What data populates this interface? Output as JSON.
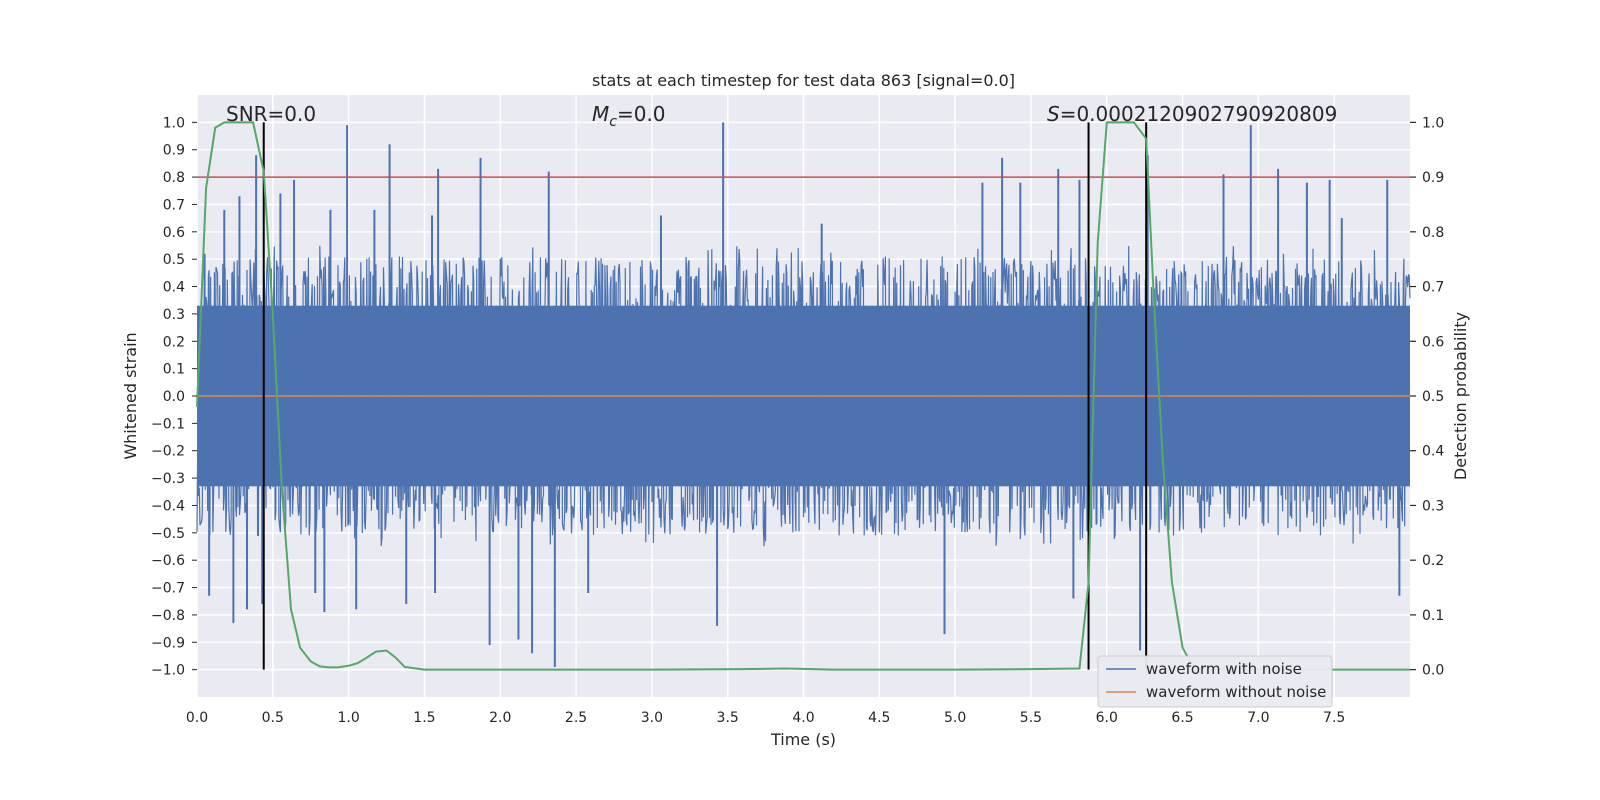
{
  "chart_data": {
    "type": "line",
    "title": "stats at each timestep for test data 863 [signal=0.0]",
    "xlabel": "Time (s)",
    "ylabel": "Whitened strain",
    "y2label": "Detection probability",
    "xlim": [
      0.0,
      8.0
    ],
    "ylim": [
      -1.1,
      1.1
    ],
    "y2lim": [
      -0.05,
      1.05
    ],
    "x_ticks": [
      0.0,
      0.5,
      1.0,
      1.5,
      2.0,
      2.5,
      3.0,
      3.5,
      4.0,
      4.5,
      5.0,
      5.5,
      6.0,
      6.5,
      7.0,
      7.5
    ],
    "x_tick_labels": [
      "0.0",
      "0.5",
      "1.0",
      "1.5",
      "2.0",
      "2.5",
      "3.0",
      "3.5",
      "4.0",
      "4.5",
      "5.0",
      "5.5",
      "6.0",
      "6.5",
      "7.0",
      "7.5"
    ],
    "y_ticks": [
      1.0,
      0.9,
      0.8,
      0.7,
      0.6,
      0.5,
      0.4,
      0.3,
      0.2,
      0.1,
      0.0,
      -0.1,
      -0.2,
      -0.3,
      -0.4,
      -0.5,
      -0.6,
      -0.7,
      -0.8,
      -0.9,
      -1.0
    ],
    "y_tick_labels": [
      "1.0",
      "0.9",
      "0.8",
      "0.7",
      "0.6",
      "0.5",
      "0.4",
      "0.3",
      "0.2",
      "0.1",
      "0.0",
      "−0.1",
      "−0.2",
      "−0.3",
      "−0.4",
      "−0.5",
      "−0.6",
      "−0.7",
      "−0.8",
      "−0.9",
      "−1.0"
    ],
    "y2_ticks": [
      1.0,
      0.9,
      0.8,
      0.7,
      0.6,
      0.5,
      0.4,
      0.3,
      0.2,
      0.1,
      0.0
    ],
    "y2_tick_labels": [
      "1.0",
      "0.9",
      "0.8",
      "0.7",
      "0.6",
      "0.5",
      "0.4",
      "0.3",
      "0.2",
      "0.1",
      "0.0"
    ],
    "annotations": {
      "snr": "SNR=0.0",
      "mc_symbol": "M",
      "mc_sub": "c",
      "mc_value": "=0.0",
      "s_symbol": "S",
      "s_value": "=0.0002120902790920809"
    },
    "threshold_line": {
      "y": 0.8,
      "color": "#c44e52"
    },
    "vertical_markers": [
      0.44,
      5.88,
      6.26
    ],
    "series": [
      {
        "name": "waveform with noise",
        "color": "#4c72b0",
        "description": "dense noisy strain, mostly within -0.5..0.5 with spikes",
        "spikes": [
          [
            0.05,
            0.52
          ],
          [
            0.08,
            -0.73
          ],
          [
            0.18,
            0.68
          ],
          [
            0.24,
            -0.83
          ],
          [
            0.28,
            0.73
          ],
          [
            0.33,
            -0.78
          ],
          [
            0.39,
            0.88
          ],
          [
            0.43,
            -0.76
          ],
          [
            0.55,
            0.74
          ],
          [
            0.64,
            0.79
          ],
          [
            0.78,
            -0.72
          ],
          [
            0.84,
            -0.79
          ],
          [
            0.88,
            0.68
          ],
          [
            0.99,
            0.99
          ],
          [
            1.05,
            -0.78
          ],
          [
            1.17,
            0.68
          ],
          [
            1.27,
            0.92
          ],
          [
            1.38,
            -0.76
          ],
          [
            1.55,
            0.66
          ],
          [
            1.57,
            -0.72
          ],
          [
            1.59,
            0.83
          ],
          [
            1.87,
            0.87
          ],
          [
            1.93,
            -0.91
          ],
          [
            2.12,
            -0.89
          ],
          [
            2.21,
            -0.94
          ],
          [
            2.32,
            0.82
          ],
          [
            2.36,
            -0.99
          ],
          [
            2.58,
            -0.72
          ],
          [
            3.06,
            0.66
          ],
          [
            3.43,
            -0.84
          ],
          [
            3.47,
            1.0
          ],
          [
            4.12,
            0.63
          ],
          [
            4.93,
            -0.87
          ],
          [
            5.18,
            0.78
          ],
          [
            5.31,
            0.87
          ],
          [
            5.43,
            0.78
          ],
          [
            5.68,
            0.83
          ],
          [
            5.78,
            -0.74
          ],
          [
            5.82,
            0.79
          ],
          [
            6.22,
            -0.93
          ],
          [
            6.27,
            0.88
          ],
          [
            6.77,
            0.81
          ],
          [
            6.95,
            0.99
          ],
          [
            7.13,
            0.83
          ],
          [
            7.32,
            0.78
          ],
          [
            7.47,
            0.79
          ],
          [
            7.55,
            0.65
          ],
          [
            7.85,
            0.79
          ],
          [
            7.93,
            -0.73
          ]
        ]
      },
      {
        "name": "waveform without noise",
        "color": "#dd8452",
        "x": [
          0.0,
          8.0
        ],
        "y": [
          0.0,
          0.0
        ]
      },
      {
        "name": "detection probability",
        "axis": "right",
        "color": "#55a868",
        "x": [
          0.0,
          0.06,
          0.12,
          0.18,
          0.25,
          0.31,
          0.37,
          0.44,
          0.5,
          0.56,
          0.62,
          0.68,
          0.75,
          0.81,
          0.87,
          0.93,
          1.0,
          1.06,
          1.12,
          1.18,
          1.25,
          1.31,
          1.37,
          1.5,
          2.0,
          3.0,
          3.6,
          3.88,
          4.2,
          5.0,
          5.5,
          5.82,
          5.88,
          5.94,
          6.0,
          6.06,
          6.12,
          6.18,
          6.26,
          6.31,
          6.37,
          6.43,
          6.5,
          6.56,
          6.62,
          7.0,
          8.0
        ],
        "y": [
          0.48,
          0.88,
          0.99,
          1.0,
          1.0,
          1.0,
          1.0,
          0.91,
          0.65,
          0.33,
          0.11,
          0.04,
          0.015,
          0.006,
          0.004,
          0.004,
          0.007,
          0.012,
          0.022,
          0.033,
          0.035,
          0.022,
          0.005,
          0.0,
          0.0,
          0.0,
          0.001,
          0.002,
          0.0,
          0.0,
          0.001,
          0.002,
          0.16,
          0.78,
          1.0,
          1.0,
          1.0,
          1.0,
          0.97,
          0.68,
          0.38,
          0.16,
          0.04,
          0.01,
          0.002,
          0.0,
          0.0
        ]
      }
    ],
    "legend": {
      "position": "lower-right",
      "entries": [
        {
          "label": "waveform with noise",
          "color": "#4c72b0"
        },
        {
          "label": "waveform without noise",
          "color": "#dd8452"
        }
      ]
    }
  }
}
